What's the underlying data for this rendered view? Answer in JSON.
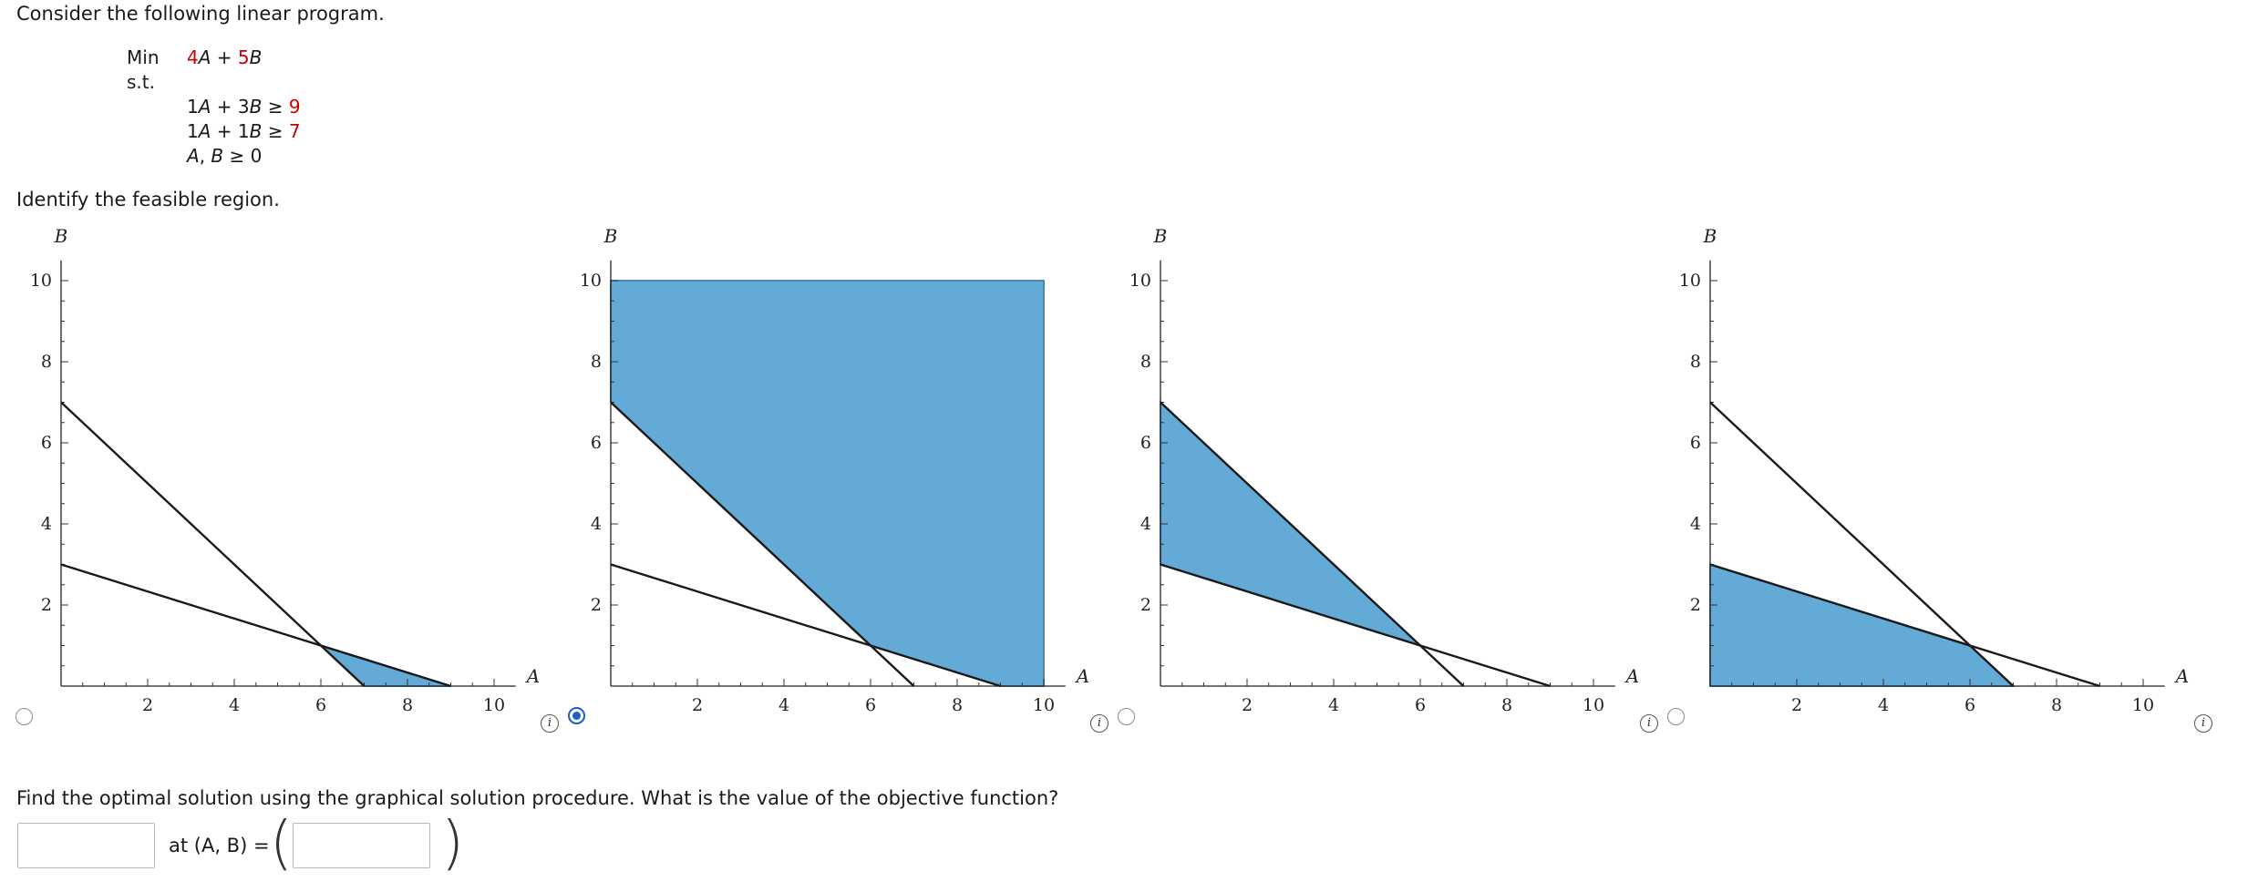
{
  "intro": "Consider the following linear program.",
  "lp": {
    "min_label": "Min",
    "objective": [
      {
        "t": "4",
        "c": "red"
      },
      {
        "t": "A",
        "c": "it"
      },
      {
        "t": " + ",
        "c": ""
      },
      {
        "t": "5",
        "c": "red"
      },
      {
        "t": "B",
        "c": "it"
      }
    ],
    "st_label": "s.t.",
    "constraints": [
      [
        {
          "t": "1",
          "c": ""
        },
        {
          "t": "A",
          "c": "it"
        },
        {
          "t": " + ",
          "c": ""
        },
        {
          "t": "3",
          "c": ""
        },
        {
          "t": "B",
          "c": "it"
        },
        {
          "t": " ≥ ",
          "c": ""
        },
        {
          "t": "9",
          "c": "red"
        }
      ],
      [
        {
          "t": "1",
          "c": ""
        },
        {
          "t": "A",
          "c": "it"
        },
        {
          "t": " + ",
          "c": ""
        },
        {
          "t": "1",
          "c": ""
        },
        {
          "t": "B",
          "c": "it"
        },
        {
          "t": " ≥ ",
          "c": ""
        },
        {
          "t": "7",
          "c": "red"
        }
      ],
      [
        {
          "t": "A",
          "c": "it"
        },
        {
          "t": ", ",
          "c": ""
        },
        {
          "t": "B",
          "c": "it"
        },
        {
          "t": " ≥ 0",
          "c": ""
        }
      ]
    ]
  },
  "question1": "Identify the feasible region.",
  "graph_axes": {
    "x_label": "A",
    "y_label": "B",
    "x_ticks": [
      "2",
      "4",
      "6",
      "8",
      "10"
    ],
    "y_ticks": [
      "2",
      "4",
      "6",
      "8",
      "10"
    ]
  },
  "chart_data": [
    {
      "type": "area",
      "option": 1,
      "selected": false,
      "xlim": [
        0,
        10
      ],
      "ylim": [
        0,
        10
      ],
      "lines": [
        {
          "x": [
            0,
            9
          ],
          "y": [
            3,
            0
          ]
        },
        {
          "x": [
            0,
            7
          ],
          "y": [
            7,
            0
          ]
        }
      ],
      "region": [
        [
          6,
          1
        ],
        [
          9,
          0
        ],
        [
          7,
          0
        ]
      ]
    },
    {
      "type": "area",
      "option": 2,
      "selected": true,
      "xlim": [
        0,
        10
      ],
      "ylim": [
        0,
        10
      ],
      "lines": [
        {
          "x": [
            0,
            9
          ],
          "y": [
            3,
            0
          ]
        },
        {
          "x": [
            0,
            7
          ],
          "y": [
            7,
            0
          ]
        }
      ],
      "region": [
        [
          0,
          10
        ],
        [
          10,
          10
        ],
        [
          10,
          0
        ],
        [
          9,
          0
        ],
        [
          6,
          1
        ],
        [
          0,
          7
        ]
      ]
    },
    {
      "type": "area",
      "option": 3,
      "selected": false,
      "xlim": [
        0,
        10
      ],
      "ylim": [
        0,
        10
      ],
      "lines": [
        {
          "x": [
            0,
            9
          ],
          "y": [
            3,
            0
          ]
        },
        {
          "x": [
            0,
            7
          ],
          "y": [
            7,
            0
          ]
        }
      ],
      "region": [
        [
          0,
          7
        ],
        [
          6,
          1
        ],
        [
          0,
          3
        ]
      ]
    },
    {
      "type": "area",
      "option": 4,
      "selected": false,
      "xlim": [
        0,
        10
      ],
      "ylim": [
        0,
        10
      ],
      "lines": [
        {
          "x": [
            0,
            9
          ],
          "y": [
            3,
            0
          ]
        },
        {
          "x": [
            0,
            7
          ],
          "y": [
            7,
            0
          ]
        }
      ],
      "region": [
        [
          0,
          0
        ],
        [
          7,
          0
        ],
        [
          6,
          1
        ],
        [
          0,
          3
        ]
      ]
    }
  ],
  "colors": {
    "region_fill": "#64aad6",
    "region_edge": "#4a86b8",
    "constraint_line": "#1a1a1a",
    "red": "#cc0000",
    "radio_selected": "#1f5fbf"
  },
  "icons": {
    "info": "info-icon",
    "radio": "radio-button"
  },
  "info_glyph": "i",
  "question2": "Find the optimal solution using the graphical solution procedure. What is the value of the objective function?",
  "answer": {
    "objective_value": "",
    "at_label": "at (A, B) =",
    "point_value": ""
  }
}
